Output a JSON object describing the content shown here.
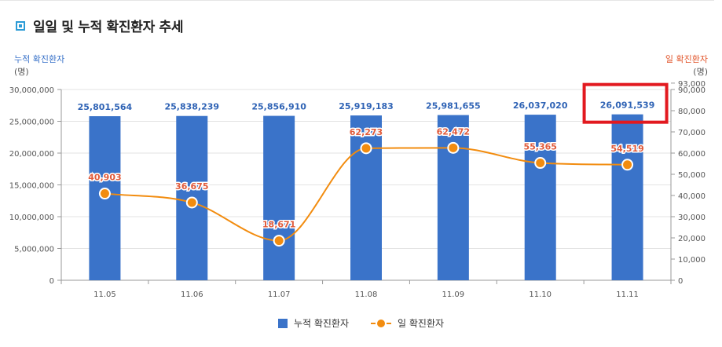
{
  "header": {
    "title": "일일 및 누적 확진환자 추세"
  },
  "axes": {
    "left_title": "누적 확진환자",
    "left_unit": "(명)",
    "right_title": "일 확진환자",
    "right_unit": "(명)"
  },
  "chart_data": {
    "type": "bar",
    "categories": [
      "11.05",
      "11.06",
      "11.07",
      "11.08",
      "11.09",
      "11.10",
      "11.11"
    ],
    "series": [
      {
        "name": "누적 확진환자",
        "type": "bar",
        "axis": "left",
        "values": [
          25801564,
          25838239,
          25856910,
          25919183,
          25981655,
          26037020,
          26091539
        ],
        "labels": [
          "25,801,564",
          "25,838,239",
          "25,856,910",
          "25,919,183",
          "25,981,655",
          "26,037,020",
          "26,091,539"
        ]
      },
      {
        "name": "일 확진환자",
        "type": "line",
        "axis": "right",
        "values": [
          40903,
          36675,
          18671,
          62273,
          62472,
          55365,
          54519
        ],
        "labels": [
          "40,903",
          "36,675",
          "18,671",
          "62,273",
          "62,472",
          "55,365",
          "54,519"
        ]
      }
    ],
    "y_left": {
      "min": 0,
      "max": 30000000,
      "ticks": [
        0,
        5000000,
        10000000,
        15000000,
        20000000,
        25000000,
        30000000
      ],
      "tick_labels": [
        "0",
        "5,000,000",
        "10,000,000",
        "15,000,000",
        "20,000,000",
        "25,000,000",
        "30,000,000"
      ]
    },
    "y_right": {
      "min": 0,
      "max": 90000,
      "ticks": [
        0,
        10000,
        20000,
        30000,
        40000,
        50000,
        60000,
        70000,
        80000,
        90000,
        93000
      ],
      "tick_labels": [
        "0",
        "10,000",
        "20,000",
        "30,000",
        "40,000",
        "50,000",
        "60,000",
        "70,000",
        "80,000",
        "90,000",
        "93,000"
      ]
    },
    "grid": true,
    "legend": "bottom-center",
    "highlight_index": 6,
    "colors": {
      "bar": "#3a73c9",
      "bar_label": "#2f63b5",
      "line": "#f28c0f",
      "line_label": "#e05a3a",
      "highlight": "#e2191f"
    }
  }
}
